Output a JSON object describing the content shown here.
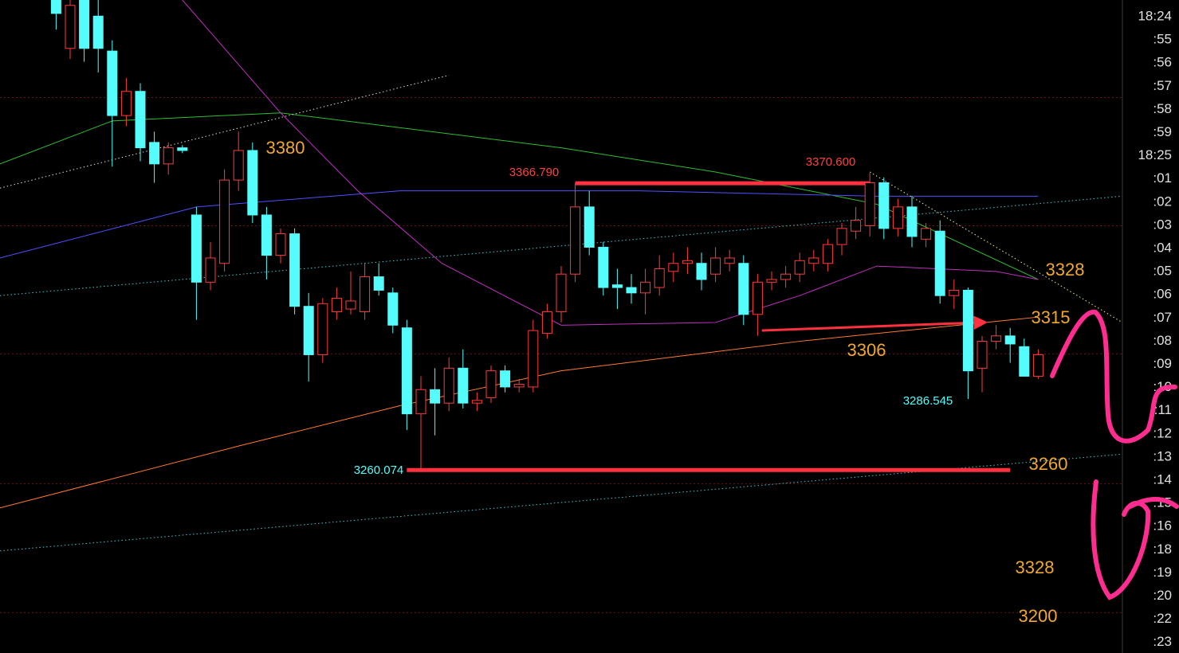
{
  "chart_data": {
    "type": "candlestick",
    "xlim": [
      -4,
      76
    ],
    "ylim": [
      3192,
      3435
    ],
    "up_color": "#ff3b3b",
    "down_color": "#54fcfc",
    "open": [
      3435,
      3417,
      3435,
      3429,
      3416,
      3392,
      3401,
      3382,
      3374,
      3380,
      3355,
      3330,
      3337,
      3368,
      3379,
      3355,
      3340,
      3348,
      3321,
      3303,
      3319,
      3320,
      3319,
      3332,
      3326,
      3313,
      3281,
      3290,
      3285,
      3298,
      3285,
      3287,
      3297,
      3291,
      3291,
      3311,
      3319,
      3333,
      3358,
      3343,
      3329,
      3328,
      3326,
      3328,
      3334,
      3337,
      3337,
      3333,
      3337,
      3337,
      3318,
      3330,
      3331,
      3333,
      3337,
      3337,
      3344,
      3349,
      3351,
      3367,
      3350,
      3358,
      3346,
      3349,
      3325,
      3327,
      3298,
      3308,
      3310,
      3306,
      3295
    ],
    "high": [
      3435,
      3435,
      3435,
      3435,
      3420,
      3406,
      3404,
      3386,
      3382,
      3381,
      3358,
      3345,
      3372,
      3386,
      3382,
      3358,
      3350,
      3350,
      3326,
      3324,
      3328,
      3334,
      3337,
      3337,
      3328,
      3316,
      3295,
      3298,
      3302,
      3305,
      3289,
      3299,
      3299,
      3294,
      3316,
      3322,
      3336,
      3366.79,
      3364,
      3345,
      3335,
      3333,
      3335,
      3340,
      3341,
      3343,
      3341,
      3343,
      3342,
      3340,
      3333,
      3334,
      3336,
      3341,
      3342,
      3346,
      3352,
      3358,
      3370.6,
      3369,
      3361,
      3362,
      3352,
      3353,
      3331,
      3328,
      3310,
      3314,
      3313,
      3309,
      3305
    ],
    "low": [
      3424,
      3413,
      3412,
      3408,
      3373,
      3388,
      3375,
      3367,
      3370,
      3378,
      3316,
      3327,
      3334,
      3364,
      3352,
      3331,
      3337,
      3318,
      3293,
      3300,
      3316,
      3318,
      3316,
      3325,
      3311,
      3275,
      3260.074,
      3273,
      3282,
      3283,
      3282,
      3285,
      3289,
      3289,
      3289,
      3309,
      3315,
      3330,
      3340,
      3325,
      3320,
      3322,
      3318,
      3325,
      3330,
      3333,
      3327,
      3330,
      3334,
      3314,
      3310,
      3327,
      3328,
      3330,
      3334,
      3334,
      3340,
      3346,
      3347,
      3346,
      3347,
      3343,
      3343,
      3322,
      3320,
      3286.545,
      3289,
      3305,
      3300,
      3295,
      3294
    ],
    "close": [
      3430,
      3433,
      3417,
      3417,
      3392,
      3401,
      3380,
      3374,
      3380,
      3379,
      3330,
      3339,
      3368,
      3379,
      3355,
      3340,
      3348,
      3321,
      3303,
      3322,
      3324,
      3323,
      3332,
      3327,
      3314,
      3281,
      3290,
      3285,
      3298,
      3285,
      3286,
      3297,
      3291,
      3292,
      3312,
      3319,
      3333,
      3358,
      3343,
      3328,
      3328,
      3326,
      3330,
      3335,
      3337,
      3338,
      3331,
      3339,
      3339,
      3318,
      3330,
      3331,
      3333,
      3338,
      3339,
      3344,
      3350,
      3353,
      3367,
      3350,
      3358,
      3347,
      3350,
      3325,
      3327,
      3297,
      3308,
      3310,
      3307,
      3295,
      3303
    ],
    "hlines": [
      3398.7,
      3351,
      3303.3,
      3255,
      3207
    ],
    "hline_color": "#6a1414",
    "lines": [
      {
        "color": "#2fbf2f",
        "style": "solid",
        "width": 1,
        "x": [
          -4,
          4,
          16,
          36,
          47,
          58.5,
          70
        ],
        "values": [
          3374,
          3390,
          3393,
          3380,
          3371,
          3359,
          3331
        ]
      },
      {
        "color": "#5050ff",
        "style": "solid",
        "width": 1,
        "x": [
          -4,
          10,
          24.5,
          41.5,
          58.5,
          70
        ],
        "values": [
          3339,
          3358,
          3364,
          3364,
          3362,
          3362
        ]
      },
      {
        "color": "#c030c0",
        "style": "solid",
        "width": 1,
        "x": [
          9,
          16,
          21.5,
          27.5,
          36,
          47,
          53,
          58.5,
          67,
          70
        ],
        "values": [
          3435,
          3393,
          3364,
          3337,
          3314,
          3315,
          3325,
          3336,
          3334,
          3331
        ]
      },
      {
        "color": "#ff7a30",
        "style": "solid",
        "width": 1,
        "x": [
          -4,
          13,
          24.5,
          36,
          53,
          70
        ],
        "values": [
          3246,
          3269,
          3284,
          3297,
          3308,
          3317
        ]
      },
      {
        "color": "#dddddd",
        "style": "dotted",
        "width": 1,
        "x": [
          -4,
          28
        ],
        "values": [
          3365,
          3407
        ]
      },
      {
        "color": "#eeee88",
        "style": "dotted",
        "width": 1,
        "x": [
          58,
          76
        ],
        "values": [
          3371,
          3315
        ]
      },
      {
        "color": "#40c8d0",
        "style": "dotted",
        "width": 1,
        "x": [
          -4,
          76
        ],
        "values": [
          3325,
          3362
        ]
      },
      {
        "color": "#40c8d0",
        "style": "dotted",
        "width": 1,
        "x": [
          -4,
          76
        ],
        "values": [
          3230,
          3266
        ]
      },
      {
        "color": "#ff3040",
        "style": "solid",
        "width": 5,
        "x": [
          37,
          58
        ],
        "values": [
          3366.79,
          3366.79
        ]
      },
      {
        "color": "#ff3040",
        "style": "solid",
        "width": 5,
        "x": [
          25,
          68
        ],
        "values": [
          3260.074,
          3260.074
        ]
      },
      {
        "color": "#ff3040",
        "style": "arrow",
        "width": 3,
        "x": [
          50.3,
          65.9
        ],
        "values": [
          3312,
          3315
        ]
      }
    ],
    "annotations": [
      "3380",
      "3366.790",
      "3370.600",
      "3328",
      "3315",
      "3306",
      "3286.545",
      "3260.074",
      "3260",
      "3328",
      "3200"
    ]
  },
  "time_list": [
    "18:24",
    ":55",
    ":56",
    ":57",
    ":58",
    ":59",
    "18:25",
    ":01",
    ":02",
    ":03",
    ":04",
    ":05",
    ":06",
    ":07",
    ":08",
    ":09",
    ":10",
    ":11",
    ":12",
    ":13",
    ":14",
    ":15",
    ":16",
    ":18",
    ":19",
    ":20",
    ":22",
    ":23"
  ]
}
